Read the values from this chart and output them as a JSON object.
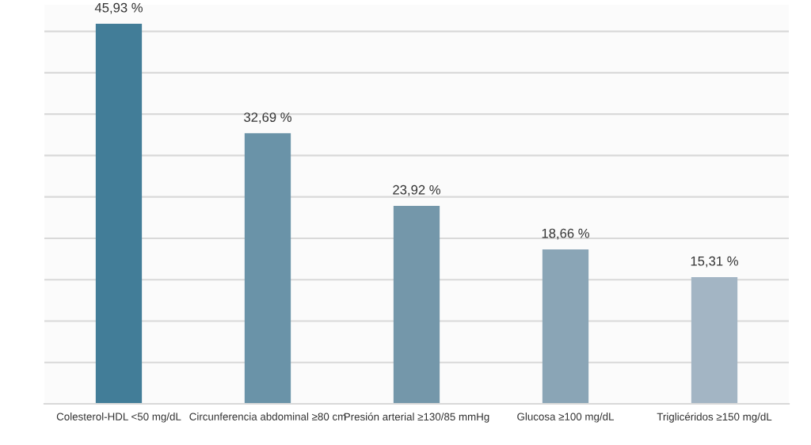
{
  "chart_data": {
    "type": "bar",
    "categories": [
      "Colesterol-HDL <50 mg/dL",
      "Circunferencia abdominal ≥80 cm",
      "Presión arterial ≥130/85 mmHg",
      "Glucosa ≥100 mg/dL",
      "Triglicéridos ≥150 mg/dL"
    ],
    "values": [
      45.93,
      32.69,
      23.92,
      18.66,
      15.31
    ],
    "value_labels": [
      "45,93 %",
      "32,69 %",
      "23,92 %",
      "18,66 %",
      "15,31 %"
    ],
    "colors": [
      "#427d98",
      "#6a93a8",
      "#7497aa",
      "#8aa5b6",
      "#a3b5c4"
    ],
    "yticks": [
      {
        "value": 0,
        "label": null
      },
      {
        "value": 5,
        "label": null
      },
      {
        "value": 10,
        "label": null
      },
      {
        "value": 15,
        "label": null
      },
      {
        "value": 20,
        "label": null
      },
      {
        "value": 25,
        "label": null
      },
      {
        "value": 30,
        "label": null
      },
      {
        "value": 35,
        "label": null
      },
      {
        "value": 40,
        "label": null
      },
      {
        "value": 45,
        "label": null
      }
    ],
    "grid": "y",
    "tick_labels": "x"
  }
}
